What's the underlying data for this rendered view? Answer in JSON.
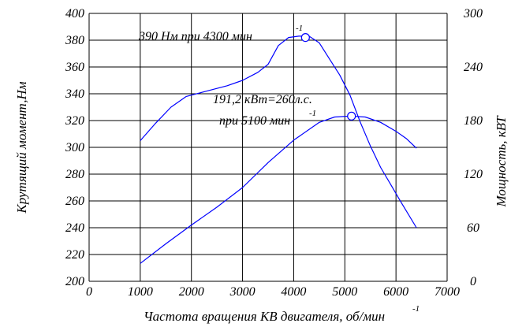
{
  "chart_data": {
    "type": "line",
    "grid": true,
    "x_axis": {
      "label": "Частота вращения КВ двигателя, об/мин",
      "label_superscript": "-1",
      "range": [
        0,
        7000
      ],
      "ticks": [
        0,
        1000,
        2000,
        3000,
        4000,
        5000,
        6000,
        7000
      ]
    },
    "y_axis_left": {
      "label": "Крутящий момент,Нм",
      "range": [
        200,
        400
      ],
      "ticks": [
        200,
        220,
        240,
        260,
        280,
        300,
        320,
        340,
        360,
        380,
        400
      ]
    },
    "y_axis_right": {
      "label": "Мощность, кВТ",
      "range": [
        0,
        300
      ],
      "ticks": [
        0,
        60,
        120,
        180,
        240,
        300
      ]
    },
    "series": [
      {
        "axis": "left",
        "color": "#0000ff",
        "x": [
          1000,
          1300,
          1600,
          1900,
          2300,
          2700,
          3000,
          3300,
          3500,
          3700,
          3900,
          4100,
          4300,
          4500,
          4700,
          4900,
          5100,
          5300,
          5500,
          5700,
          5900,
          6100,
          6400
        ],
        "y": [
          305,
          318,
          330,
          338,
          342,
          346,
          350,
          356,
          362,
          376,
          382,
          383,
          383,
          378,
          366,
          354,
          339,
          319,
          301,
          285,
          272,
          259,
          240
        ]
      },
      {
        "axis": "right",
        "color": "#0000ff",
        "x": [
          1000,
          1500,
          2000,
          2500,
          3000,
          3500,
          4000,
          4500,
          4800,
          5100,
          5400,
          5700,
          6000,
          6200,
          6400
        ],
        "y": [
          20,
          42,
          63,
          83,
          105,
          133,
          158,
          178,
          184,
          185,
          184,
          178,
          168,
          160,
          149
        ]
      }
    ],
    "annotations": [
      {
        "text": "390 Нм при 4300 мин",
        "superscript": "-1",
        "marker": {
          "x": 4230,
          "y": 382,
          "axis": "left"
        }
      },
      {
        "text": "191,2 кВт=260л.с.",
        "line2": "при 5100 мин",
        "superscript": "-1",
        "marker": {
          "x": 5130,
          "y": 185,
          "axis": "right"
        }
      }
    ]
  }
}
